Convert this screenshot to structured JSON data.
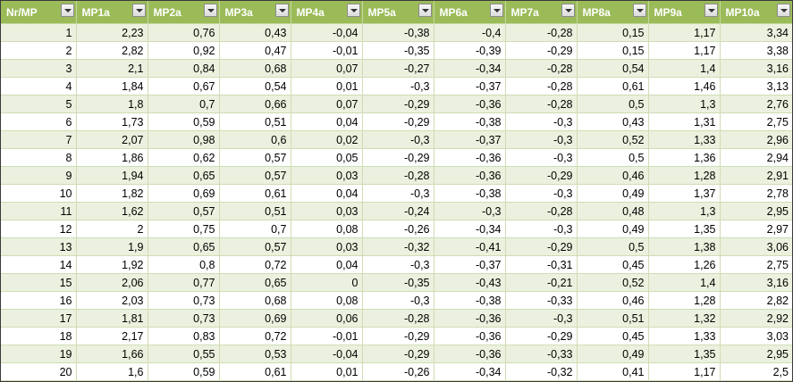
{
  "headers": [
    "Nr/MP",
    "MP1a",
    "MP2a",
    "MP3a",
    "MP4a",
    "MP5a",
    "MP6a",
    "MP7a",
    "MP8a",
    "MP9a",
    "MP10a"
  ],
  "filter_icon": "dropdown-arrow-icon",
  "header_color": "#9bbb59",
  "band_color": "#ebf1de",
  "rows": [
    [
      "1",
      "2,23",
      "0,76",
      "0,43",
      "-0,04",
      "-0,38",
      "-0,4",
      "-0,28",
      "0,15",
      "1,17",
      "3,34"
    ],
    [
      "2",
      "2,82",
      "0,92",
      "0,47",
      "-0,01",
      "-0,35",
      "-0,39",
      "-0,29",
      "0,15",
      "1,17",
      "3,38"
    ],
    [
      "3",
      "2,1",
      "0,84",
      "0,68",
      "0,07",
      "-0,27",
      "-0,34",
      "-0,28",
      "0,54",
      "1,4",
      "3,16"
    ],
    [
      "4",
      "1,84",
      "0,67",
      "0,54",
      "0,01",
      "-0,3",
      "-0,37",
      "-0,28",
      "0,61",
      "1,46",
      "3,13"
    ],
    [
      "5",
      "1,8",
      "0,7",
      "0,66",
      "0,07",
      "-0,29",
      "-0,36",
      "-0,28",
      "0,5",
      "1,3",
      "2,76"
    ],
    [
      "6",
      "1,73",
      "0,59",
      "0,51",
      "0,04",
      "-0,29",
      "-0,38",
      "-0,3",
      "0,43",
      "1,31",
      "2,75"
    ],
    [
      "7",
      "2,07",
      "0,98",
      "0,6",
      "0,02",
      "-0,3",
      "-0,37",
      "-0,3",
      "0,52",
      "1,33",
      "2,96"
    ],
    [
      "8",
      "1,86",
      "0,62",
      "0,57",
      "0,05",
      "-0,29",
      "-0,36",
      "-0,3",
      "0,5",
      "1,36",
      "2,94"
    ],
    [
      "9",
      "1,94",
      "0,65",
      "0,57",
      "0,03",
      "-0,28",
      "-0,36",
      "-0,29",
      "0,46",
      "1,28",
      "2,91"
    ],
    [
      "10",
      "1,82",
      "0,69",
      "0,61",
      "0,04",
      "-0,3",
      "-0,38",
      "-0,3",
      "0,49",
      "1,37",
      "2,78"
    ],
    [
      "11",
      "1,62",
      "0,57",
      "0,51",
      "0,03",
      "-0,24",
      "-0,3",
      "-0,28",
      "0,48",
      "1,3",
      "2,95"
    ],
    [
      "12",
      "2",
      "0,75",
      "0,7",
      "0,08",
      "-0,26",
      "-0,34",
      "-0,3",
      "0,49",
      "1,35",
      "2,97"
    ],
    [
      "13",
      "1,9",
      "0,65",
      "0,57",
      "0,03",
      "-0,32",
      "-0,41",
      "-0,29",
      "0,5",
      "1,38",
      "3,06"
    ],
    [
      "14",
      "1,92",
      "0,8",
      "0,72",
      "0,04",
      "-0,3",
      "-0,37",
      "-0,31",
      "0,45",
      "1,26",
      "2,75"
    ],
    [
      "15",
      "2,06",
      "0,77",
      "0,65",
      "0",
      "-0,35",
      "-0,43",
      "-0,21",
      "0,52",
      "1,4",
      "3,16"
    ],
    [
      "16",
      "2,03",
      "0,73",
      "0,68",
      "0,08",
      "-0,3",
      "-0,38",
      "-0,33",
      "0,46",
      "1,28",
      "2,82"
    ],
    [
      "17",
      "1,81",
      "0,73",
      "0,69",
      "0,06",
      "-0,28",
      "-0,36",
      "-0,3",
      "0,51",
      "1,32",
      "2,92"
    ],
    [
      "18",
      "2,17",
      "0,83",
      "0,72",
      "-0,01",
      "-0,29",
      "-0,36",
      "-0,29",
      "0,45",
      "1,33",
      "3,03"
    ],
    [
      "19",
      "1,66",
      "0,55",
      "0,53",
      "-0,04",
      "-0,29",
      "-0,36",
      "-0,33",
      "0,49",
      "1,35",
      "2,95"
    ],
    [
      "20",
      "1,6",
      "0,59",
      "0,61",
      "0,01",
      "-0,26",
      "-0,34",
      "-0,32",
      "0,41",
      "1,17",
      "2,5"
    ]
  ]
}
